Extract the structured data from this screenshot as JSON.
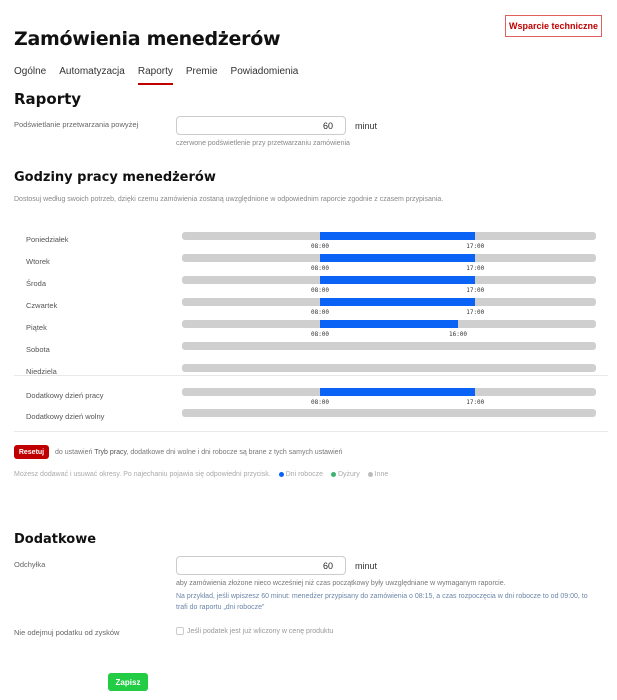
{
  "header": {
    "title": "Zamówienia menedżerów",
    "support_button": "Wsparcie techniczne"
  },
  "tabs": [
    {
      "label": "Ogólne"
    },
    {
      "label": "Automatyzacja"
    },
    {
      "label": "Raporty",
      "active": true
    },
    {
      "label": "Premie"
    },
    {
      "label": "Powiadomienia"
    }
  ],
  "reports": {
    "title": "Raporty",
    "highlight_label": "Podświetlanie przetwarzania powyżej",
    "highlight_value": "60",
    "unit": "minut",
    "highlight_hint": "czerwone podświetlenie przy przetwarzaniu zamówienia"
  },
  "hours": {
    "title": "Godziny pracy menedżerów",
    "description": "Dostosuj według swoich potrzeb, dzięki czemu zamówienia zostaną uwzględnione w odpowiednim raporcie zgodnie z czasem przypisania.",
    "days": [
      {
        "label": "Poniedziałek",
        "start": "08:00",
        "end": "17:00"
      },
      {
        "label": "Wtorek",
        "start": "08:00",
        "end": "17:00"
      },
      {
        "label": "Środa",
        "start": "08:00",
        "end": "17:00"
      },
      {
        "label": "Czwartek",
        "start": "08:00",
        "end": "17:00"
      },
      {
        "label": "Piątek",
        "start": "08:00",
        "end": "16:00"
      },
      {
        "label": "Sobota"
      },
      {
        "label": "Niedziela"
      }
    ],
    "extra": [
      {
        "label": "Dodatkowy dzień pracy",
        "start": "08:00",
        "end": "17:00"
      },
      {
        "label": "Dodatkowy dzień wolny"
      }
    ],
    "reset_button": "Resetuj",
    "reset_text_before": "do ustawień",
    "reset_link": "Tryb pracy",
    "reset_text_after": ", dodatkowe dni wolne i dni robocze są brane z tych samych ustawień",
    "legend_text": "Możesz dodawać i usuwać okresy. Po najechaniu pojawia się odpowiedni przycisk.",
    "legend": [
      {
        "label": "Dni robocze",
        "color": "#0a63f5"
      },
      {
        "label": "Dyżury",
        "color": "#3cb371"
      },
      {
        "label": "Inne",
        "color": "#bbbbbb"
      }
    ]
  },
  "additional": {
    "title": "Dodatkowe",
    "deviation_label": "Odchyłka",
    "deviation_value": "60",
    "unit": "minut",
    "hint1": "aby zamówienia złożone nieco wcześniej niż czas początkowy były uwzględniane w wymaganym raporcie.",
    "hint2": "Na przykład, jeśli wpiszesz 60 minut: menedżer przypisany do zamówienia o 08:15, a czas rozpoczęcia w dni robocze to od 09:00, to trafi do raportu „dni robocze”",
    "tax_label": "Nie odejmuj podatku od zysków",
    "tax_checkbox": "Jeśli podatek jest już wliczony w cenę produktu",
    "tax_checked": false
  },
  "save_button": "Zapisz"
}
